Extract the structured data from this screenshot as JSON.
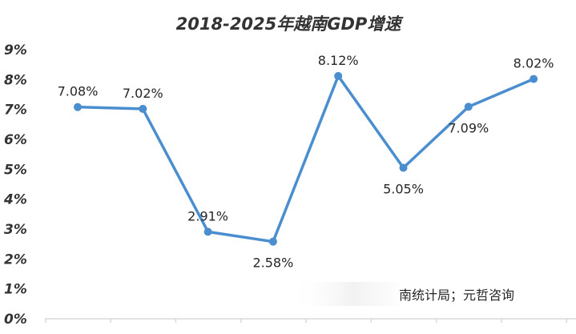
{
  "chart_data": {
    "type": "line",
    "title": "2018-2025年越南GDP增速",
    "xlabel": "",
    "ylabel": "",
    "ylim": [
      0,
      9
    ],
    "yticks": [
      "0%",
      "1%",
      "2%",
      "3%",
      "4%",
      "5%",
      "6%",
      "7%",
      "8%",
      "9%"
    ],
    "series": [
      {
        "color": "#4a8ed0",
        "values": [
          7.08,
          7.02,
          2.91,
          2.58,
          8.12,
          5.05,
          7.09,
          8.02
        ],
        "labels": [
          "7.08%",
          "7.02%",
          "2.91%",
          "2.58%",
          "8.12%",
          "5.05%",
          "7.09%",
          "8.02%"
        ]
      }
    ],
    "grid": false,
    "legend": "none",
    "source_note": "南统计局；元哲咨询"
  }
}
